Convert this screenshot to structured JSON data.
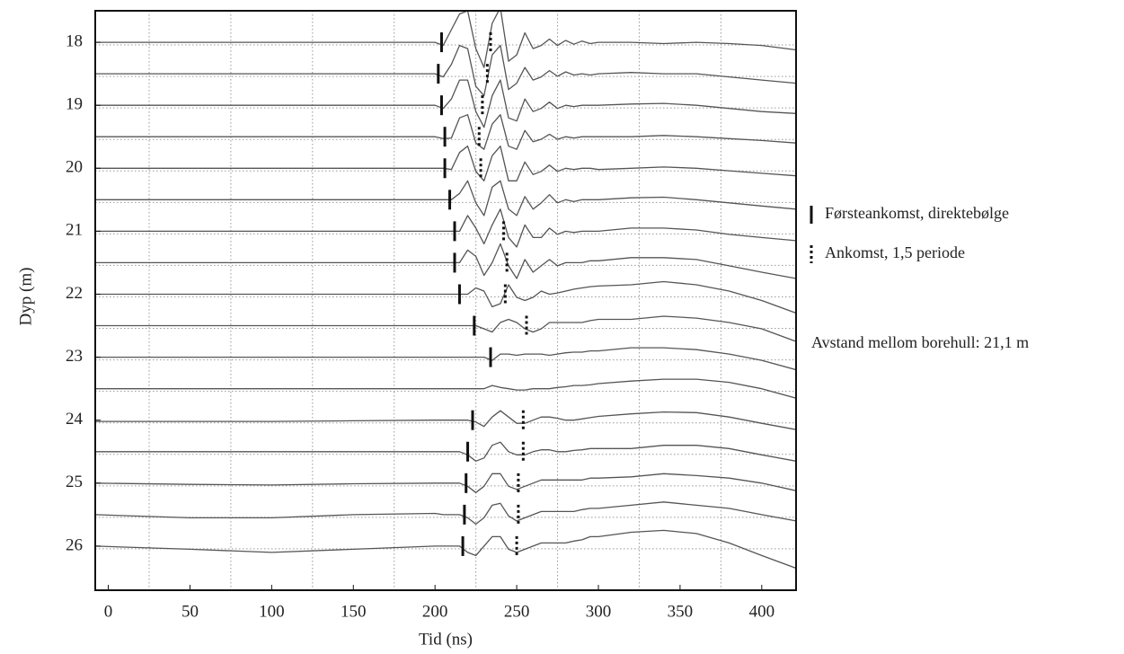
{
  "chart_data": {
    "type": "traces",
    "xlabel": "Tid (ns)",
    "ylabel": "Dyp (m)",
    "annotation": "Avstand mellom borehull: 21,1 m",
    "xlim": [
      -8,
      421
    ],
    "xticks": [
      0,
      50,
      100,
      150,
      200,
      250,
      300,
      350,
      400
    ],
    "ylim": [
      26.7,
      17.5
    ],
    "yticks": [
      18,
      19,
      20,
      21,
      22,
      23,
      24,
      25,
      26
    ],
    "x_grid": [
      25,
      75,
      125,
      175,
      225,
      275,
      325,
      375
    ],
    "y_grid": [
      18,
      18.5,
      19,
      19.5,
      20,
      20.5,
      21,
      21.5,
      22,
      22.5,
      23,
      23.5,
      24,
      24.5,
      25,
      25.5,
      26
    ],
    "color": "#555555",
    "grid_color": "#999999",
    "marker_color": "#111111",
    "markers": [
      {
        "name": "Førsteankomst, direktebølge",
        "style": "solid"
      },
      {
        "name": "Ankomst, 1,5 periode",
        "style": "dotted"
      }
    ],
    "x": [
      -8,
      50,
      100,
      150,
      200,
      205,
      210,
      215,
      220,
      225,
      230,
      235,
      240,
      245,
      250,
      255,
      260,
      265,
      270,
      275,
      280,
      285,
      290,
      295,
      300,
      320,
      340,
      360,
      380,
      400,
      421
    ],
    "series": [
      {
        "depth": 18,
        "first_arrival": 204,
        "arrival_1_5": 234,
        "values": [
          0,
          0,
          0,
          0,
          0,
          0.05,
          -0.2,
          -0.45,
          -0.5,
          0.1,
          0.4,
          -0.3,
          -0.55,
          0.3,
          0.2,
          -0.15,
          0.1,
          0.05,
          -0.05,
          0.05,
          -0.03,
          0.03,
          -0.02,
          0.02,
          0,
          0,
          0.02,
          0,
          0.02,
          0.05,
          0.12
        ]
      },
      {
        "depth": 18.5,
        "first_arrival": 202,
        "arrival_1_5": 232,
        "values": [
          0,
          0,
          0,
          0,
          0,
          0.05,
          -0.15,
          -0.45,
          -0.4,
          0.2,
          0.35,
          -0.3,
          -0.45,
          0.25,
          0.15,
          -0.1,
          0.1,
          0.05,
          -0.05,
          0.04,
          -0.03,
          0.02,
          0,
          0.02,
          0,
          -0.02,
          0,
          0,
          0.05,
          0.1,
          0.15
        ]
      },
      {
        "depth": 19,
        "first_arrival": 204,
        "arrival_1_5": 229,
        "values": [
          0,
          0,
          0,
          0,
          0,
          0.05,
          -0.1,
          -0.4,
          -0.4,
          0.1,
          0.35,
          -0.15,
          -0.4,
          0.2,
          0.25,
          -0.1,
          0.1,
          0.05,
          -0.05,
          0.05,
          0,
          0.02,
          0,
          0,
          0,
          -0.02,
          -0.03,
          0,
          0.05,
          0.1,
          0.13
        ]
      },
      {
        "depth": 19.5,
        "first_arrival": 206,
        "arrival_1_5": 227,
        "values": [
          0,
          0,
          0,
          0,
          0,
          0.03,
          0.02,
          -0.3,
          -0.35,
          0.1,
          0.2,
          -0.2,
          -0.35,
          0.15,
          0.2,
          -0.1,
          0.08,
          0.04,
          -0.04,
          0.04,
          0,
          0.02,
          0,
          0,
          0,
          0,
          -0.02,
          0,
          0.03,
          0.06,
          0.1
        ]
      },
      {
        "depth": 20,
        "first_arrival": 206,
        "arrival_1_5": 228,
        "values": [
          0,
          0,
          0,
          0,
          0,
          0,
          0.02,
          -0.25,
          -0.35,
          0.05,
          0.2,
          -0.2,
          -0.35,
          0.2,
          0.2,
          -0.1,
          0.1,
          0.05,
          -0.05,
          0.05,
          0,
          0.02,
          0,
          0,
          0.02,
          0,
          -0.02,
          0,
          0.04,
          0.08,
          0.12
        ]
      },
      {
        "depth": 20.5,
        "first_arrival": 209,
        "arrival_1_5": null,
        "values": [
          0,
          0,
          0,
          0,
          0,
          0,
          0,
          -0.1,
          -0.3,
          0.05,
          0.25,
          -0.2,
          -0.3,
          0.15,
          0.25,
          -0.05,
          0.15,
          0.05,
          -0.08,
          0.05,
          0,
          0.03,
          0,
          0,
          0,
          -0.03,
          -0.04,
          0,
          0.05,
          0.1,
          0.15
        ]
      },
      {
        "depth": 21,
        "first_arrival": 212,
        "arrival_1_5": 242,
        "values": [
          0,
          0,
          0,
          0,
          0,
          0,
          0,
          0,
          -0.25,
          -0.05,
          0.2,
          -0.1,
          -0.35,
          0.1,
          0.25,
          -0.1,
          0.1,
          0.1,
          -0.05,
          0.05,
          0,
          0.02,
          0,
          0,
          0,
          -0.05,
          -0.05,
          -0.02,
          0.05,
          0.1,
          0.15
        ]
      },
      {
        "depth": 21.5,
        "first_arrival": 212,
        "arrival_1_5": 244,
        "values": [
          0,
          0,
          0,
          0,
          0,
          0,
          0,
          0,
          -0.2,
          -0.1,
          0.2,
          0,
          -0.3,
          0.05,
          0.25,
          -0.05,
          0.15,
          0.05,
          -0.05,
          0.05,
          0,
          0,
          0,
          -0.03,
          -0.03,
          -0.08,
          -0.08,
          -0.05,
          0.05,
          0.15,
          0.25
        ]
      },
      {
        "depth": 22,
        "first_arrival": 215,
        "arrival_1_5": 243,
        "values": [
          0,
          0,
          0,
          0,
          0,
          0,
          0,
          0,
          0,
          -0.1,
          -0.05,
          0.2,
          0.15,
          -0.15,
          0.05,
          0.1,
          0.05,
          -0.05,
          0,
          -0.02,
          -0.05,
          -0.08,
          -0.1,
          -0.12,
          -0.13,
          -0.15,
          -0.2,
          -0.15,
          -0.05,
          0.1,
          0.3
        ]
      },
      {
        "depth": 22.5,
        "first_arrival": 224,
        "arrival_1_5": 256,
        "values": [
          0,
          0,
          0,
          0,
          0,
          0,
          0,
          0,
          0,
          0,
          0.05,
          0.1,
          -0.05,
          -0.1,
          -0.05,
          0.05,
          0.1,
          0.05,
          -0.05,
          -0.05,
          -0.05,
          -0.05,
          -0.05,
          -0.08,
          -0.1,
          -0.1,
          -0.15,
          -0.12,
          -0.05,
          0.05,
          0.25
        ]
      },
      {
        "depth": 23,
        "first_arrival": 234,
        "arrival_1_5": null,
        "values": [
          0,
          0,
          0,
          0,
          0,
          0,
          0,
          0,
          0,
          0,
          0,
          0.05,
          -0.05,
          -0.05,
          -0.03,
          -0.05,
          -0.05,
          -0.05,
          -0.03,
          -0.05,
          -0.07,
          -0.08,
          -0.08,
          -0.1,
          -0.1,
          -0.15,
          -0.15,
          -0.12,
          -0.05,
          0.05,
          0.2
        ]
      },
      {
        "depth": 23.5,
        "first_arrival": null,
        "arrival_1_5": null,
        "values": [
          0,
          0,
          0,
          0,
          0,
          0,
          0,
          0,
          0,
          0,
          0,
          -0.05,
          -0.02,
          0,
          0.02,
          0.02,
          0,
          0,
          0,
          -0.02,
          -0.03,
          -0.05,
          -0.05,
          -0.06,
          -0.08,
          -0.12,
          -0.15,
          -0.15,
          -0.1,
          0,
          0.15
        ]
      },
      {
        "depth": 24,
        "first_arrival": 223,
        "arrival_1_5": 254,
        "values": [
          0.02,
          0.02,
          0.02,
          0.01,
          0,
          0,
          0,
          0,
          0,
          0.03,
          0.1,
          -0.05,
          -0.15,
          -0.05,
          0.05,
          0.05,
          0,
          -0.05,
          -0.05,
          -0.03,
          0,
          0,
          -0.02,
          -0.04,
          -0.06,
          -0.1,
          -0.13,
          -0.12,
          -0.05,
          0.05,
          0.15
        ]
      },
      {
        "depth": 24.5,
        "first_arrival": 220,
        "arrival_1_5": 254,
        "values": [
          0,
          0,
          0,
          0,
          0,
          0,
          0,
          0,
          0.05,
          0.15,
          0.1,
          -0.1,
          -0.15,
          0,
          0.05,
          0.05,
          0,
          -0.03,
          -0.03,
          0,
          0,
          -0.02,
          -0.03,
          -0.05,
          -0.05,
          -0.05,
          -0.1,
          -0.1,
          -0.05,
          0.05,
          0.15
        ]
      },
      {
        "depth": 25,
        "first_arrival": 219,
        "arrival_1_5": 251,
        "values": [
          0,
          0.02,
          0.03,
          0.01,
          0,
          0,
          0,
          0,
          0.05,
          0.15,
          0.05,
          -0.15,
          -0.15,
          0.05,
          0.1,
          0.05,
          0,
          -0.05,
          -0.05,
          -0.05,
          -0.05,
          -0.05,
          -0.05,
          -0.08,
          -0.08,
          -0.1,
          -0.15,
          -0.12,
          -0.08,
          0,
          0.12
        ]
      },
      {
        "depth": 25.5,
        "first_arrival": 218,
        "arrival_1_5": 251,
        "values": [
          0,
          0.05,
          0.05,
          0,
          -0.02,
          0,
          0,
          0,
          0.05,
          0.15,
          0.05,
          -0.15,
          -0.18,
          0.02,
          0.1,
          0.05,
          0,
          -0.05,
          -0.05,
          -0.05,
          -0.05,
          -0.05,
          -0.08,
          -0.1,
          -0.1,
          -0.15,
          -0.2,
          -0.15,
          -0.1,
          0,
          0.1
        ]
      },
      {
        "depth": 26,
        "first_arrival": 217,
        "arrival_1_5": 250,
        "values": [
          0,
          0.05,
          0.1,
          0.05,
          0,
          0,
          0,
          0,
          0.1,
          0.15,
          0,
          -0.15,
          -0.15,
          0.05,
          0.1,
          0.05,
          0,
          -0.05,
          -0.05,
          -0.05,
          -0.05,
          -0.08,
          -0.1,
          -0.15,
          -0.15,
          -0.22,
          -0.25,
          -0.2,
          -0.05,
          0.15,
          0.35
        ]
      }
    ]
  }
}
